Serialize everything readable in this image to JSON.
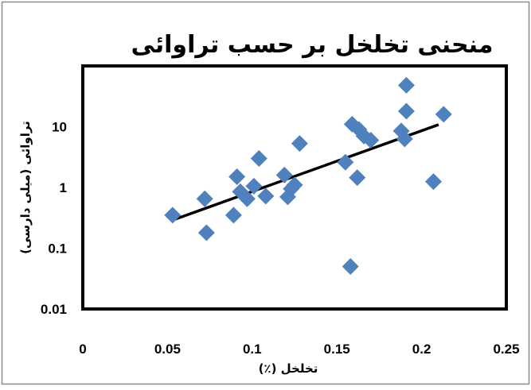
{
  "chart_data": {
    "type": "scatter",
    "title": "منحنی تخلخل بر حسب تراوائی",
    "xlabel": "تخلخل (٪)",
    "ylabel": "تراوائی (میلی دارسی)",
    "xlim": [
      0,
      0.25
    ],
    "ylim": [
      0.01,
      100
    ],
    "y_scale": "log",
    "x_ticks": [
      "0",
      "0.05",
      "0.1",
      "0.15",
      "0.2",
      "0.25"
    ],
    "y_ticks": [
      "0.01",
      "0.1",
      "1",
      "10"
    ],
    "grid": false,
    "legend": "none",
    "marker": "diamond",
    "marker_color": "#4F81BD",
    "trendline_color": "#000000",
    "points": [
      {
        "x": 0.053,
        "y": 0.35
      },
      {
        "x": 0.072,
        "y": 0.65
      },
      {
        "x": 0.073,
        "y": 0.18
      },
      {
        "x": 0.089,
        "y": 0.35
      },
      {
        "x": 0.091,
        "y": 1.5
      },
      {
        "x": 0.093,
        "y": 0.85
      },
      {
        "x": 0.097,
        "y": 0.65
      },
      {
        "x": 0.101,
        "y": 1.05
      },
      {
        "x": 0.104,
        "y": 3.0
      },
      {
        "x": 0.108,
        "y": 0.72
      },
      {
        "x": 0.119,
        "y": 1.6
      },
      {
        "x": 0.121,
        "y": 0.7
      },
      {
        "x": 0.123,
        "y": 0.95
      },
      {
        "x": 0.125,
        "y": 1.1
      },
      {
        "x": 0.128,
        "y": 5.3
      },
      {
        "x": 0.155,
        "y": 2.6
      },
      {
        "x": 0.158,
        "y": 0.05
      },
      {
        "x": 0.159,
        "y": 11.0
      },
      {
        "x": 0.162,
        "y": 1.45
      },
      {
        "x": 0.163,
        "y": 9.0
      },
      {
        "x": 0.166,
        "y": 7.0
      },
      {
        "x": 0.17,
        "y": 6.0
      },
      {
        "x": 0.188,
        "y": 8.5
      },
      {
        "x": 0.19,
        "y": 6.3
      },
      {
        "x": 0.191,
        "y": 18.0
      },
      {
        "x": 0.191,
        "y": 48.0
      },
      {
        "x": 0.207,
        "y": 1.25
      },
      {
        "x": 0.213,
        "y": 16.0
      }
    ],
    "trendline": {
      "x": [
        0.053,
        0.21
      ],
      "y": [
        0.29,
        10.8
      ]
    }
  }
}
